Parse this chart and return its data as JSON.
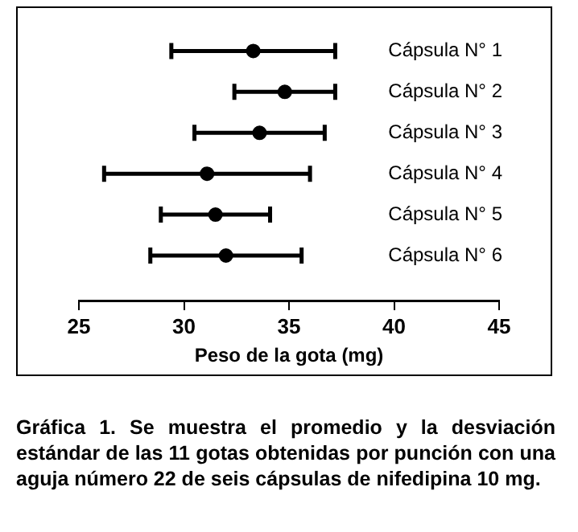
{
  "chart_data": {
    "type": "scatter",
    "orientation": "horizontal",
    "categories": [
      "Cápsula N° 1",
      "Cápsula N° 2",
      "Cápsula N° 3",
      "Cápsula N° 4",
      "Cápsula N° 5",
      "Cápsula N° 6"
    ],
    "values": [
      33.3,
      34.8,
      33.6,
      31.1,
      31.5,
      32.0
    ],
    "errors": [
      3.9,
      2.4,
      3.1,
      4.9,
      2.6,
      3.6
    ],
    "color": "#000000",
    "marker": "circle",
    "xlim": [
      25,
      45
    ],
    "xticks": [
      25,
      30,
      35,
      40,
      45
    ],
    "xlabel": "Peso de la gota (mg)",
    "grid": false,
    "legend": false,
    "annotations": [
      "Gráfica 1. Se muestra  el promedio y la desviación estándar de las 11 gotas obtenidas por punción con una aguja número 22 de seis cápsulas de nifedipina 10 mg."
    ]
  }
}
